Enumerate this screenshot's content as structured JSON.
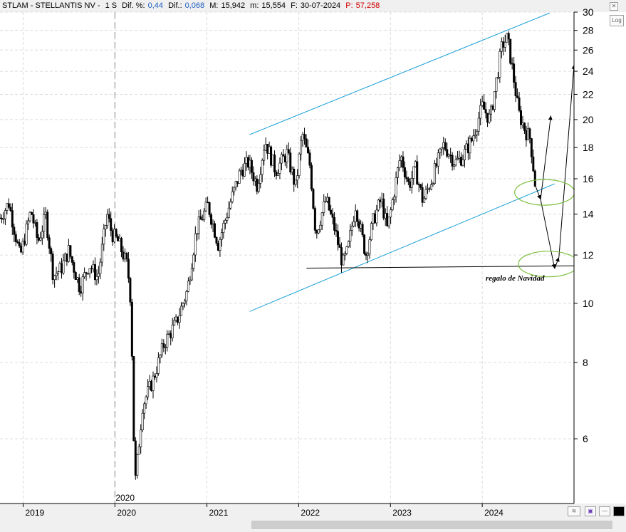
{
  "header": {
    "symbol_name": "STLAM - STELLANTIS NV -",
    "period": "1 S",
    "dif_pct_label": "Dif. %:",
    "dif_pct_value": "0,44",
    "dif_label": "Dif.:",
    "dif_value": "0,068",
    "max_label": "M:",
    "max_value": "15,942",
    "min_label": "m:",
    "min_value": "15,554",
    "date_label": "F:",
    "date_value": "30-07-2024",
    "p_label": "P:",
    "p_value": "57,258"
  },
  "log_button": "Log",
  "annotation": "regalo de Navidad",
  "colors": {
    "channel": "#1a9fd8",
    "ellipse": "#7cbf3c",
    "candles": "#000000",
    "header_value": "#1f5fc4",
    "header_p": "#d00000"
  },
  "chart_data": {
    "type": "candlestick",
    "scale": "log",
    "ylim": [
      4.7,
      30
    ],
    "yticks": [
      6,
      8,
      10,
      12,
      14,
      16,
      18,
      20,
      22,
      24,
      26,
      28,
      30
    ],
    "xlim": [
      "2018-10-01",
      "2024-12-31"
    ],
    "xticks": [
      {
        "label": "2019",
        "date": "2019-01-01"
      },
      {
        "label": "2020",
        "date": "2020-01-01"
      },
      {
        "label": "2021",
        "date": "2021-01-01"
      },
      {
        "label": "2022",
        "date": "2022-01-01"
      },
      {
        "label": "2023",
        "date": "2023-01-01"
      },
      {
        "label": "2024",
        "date": "2024-01-01"
      }
    ],
    "marker_label": "2020",
    "marker_date": "2020-01-01",
    "price_path": [
      [
        "2018-10-01",
        13.8
      ],
      [
        "2018-11-05",
        14.6
      ],
      [
        "2018-12-20",
        11.9
      ],
      [
        "2019-02-01",
        14.2
      ],
      [
        "2019-03-01",
        12.6
      ],
      [
        "2019-04-01",
        13.9
      ],
      [
        "2019-05-01",
        11.1
      ],
      [
        "2019-06-01",
        11.4
      ],
      [
        "2019-07-01",
        12.2
      ],
      [
        "2019-08-15",
        10.6
      ],
      [
        "2019-09-20",
        11.6
      ],
      [
        "2019-10-25",
        11.0
      ],
      [
        "2019-12-01",
        14.0
      ],
      [
        "2019-12-20",
        13.0
      ],
      [
        "2020-01-15",
        12.6
      ],
      [
        "2020-02-20",
        11.5
      ],
      [
        "2020-03-05",
        10.0
      ],
      [
        "2020-03-20",
        5.0
      ],
      [
        "2020-04-20",
        6.8
      ],
      [
        "2020-06-01",
        7.5
      ],
      [
        "2020-07-15",
        8.6
      ],
      [
        "2020-09-01",
        9.3
      ],
      [
        "2020-10-15",
        10.5
      ],
      [
        "2020-11-20",
        13.2
      ],
      [
        "2021-01-05",
        14.5
      ],
      [
        "2021-02-15",
        12.5
      ],
      [
        "2021-04-01",
        14.5
      ],
      [
        "2021-05-15",
        16.5
      ],
      [
        "2021-06-15",
        17.0
      ],
      [
        "2021-07-20",
        15.6
      ],
      [
        "2021-08-20",
        18.5
      ],
      [
        "2021-10-01",
        16.5
      ],
      [
        "2021-11-15",
        17.6
      ],
      [
        "2021-12-20",
        15.5
      ],
      [
        "2022-01-15",
        19.0
      ],
      [
        "2022-02-15",
        16.8
      ],
      [
        "2022-03-10",
        13.0
      ],
      [
        "2022-04-20",
        14.8
      ],
      [
        "2022-05-25",
        13.2
      ],
      [
        "2022-06-25",
        11.6
      ],
      [
        "2022-07-15",
        12.2
      ],
      [
        "2022-08-15",
        14.5
      ],
      [
        "2022-09-25",
        12.0
      ],
      [
        "2022-10-25",
        13.7
      ],
      [
        "2022-11-25",
        14.8
      ],
      [
        "2022-12-20",
        13.2
      ],
      [
        "2023-02-10",
        17.5
      ],
      [
        "2023-03-15",
        15.6
      ],
      [
        "2023-04-10",
        16.6
      ],
      [
        "2023-05-10",
        14.7
      ],
      [
        "2023-06-15",
        16.0
      ],
      [
        "2023-08-01",
        18.2
      ],
      [
        "2023-09-15",
        17.0
      ],
      [
        "2023-10-15",
        17.4
      ],
      [
        "2023-11-20",
        18.5
      ],
      [
        "2024-01-01",
        21.0
      ],
      [
        "2024-02-01",
        20.0
      ],
      [
        "2024-03-20",
        26.5
      ],
      [
        "2024-04-10",
        27.2
      ],
      [
        "2024-05-01",
        24.0
      ],
      [
        "2024-05-25",
        20.5
      ],
      [
        "2024-06-20",
        19.2
      ],
      [
        "2024-07-10",
        18.6
      ],
      [
        "2024-07-30",
        15.6
      ]
    ],
    "channel": {
      "upper": [
        [
          "2021-06-20",
          18.9
        ],
        [
          "2024-09-25",
          29.9
        ]
      ],
      "lower": [
        [
          "2021-06-20",
          9.7
        ],
        [
          "2024-10-15",
          15.7
        ]
      ]
    },
    "support": [
      [
        "2022-02-01",
        11.42
      ],
      [
        "2024-12-31",
        11.52
      ]
    ],
    "projection": [
      [
        "2024-07-30",
        15.6
      ],
      [
        "2024-08-20",
        14.8
      ],
      [
        "2024-10-15",
        11.4
      ],
      [
        "2024-11-01",
        11.9
      ],
      [
        "2024-12-31",
        24.6
      ]
    ],
    "projection_arrow_2": [
      [
        "2024-08-20",
        14.8
      ],
      [
        "2024-09-30",
        20.3
      ]
    ],
    "ellipses": [
      {
        "date": "2024-09-05",
        "value": 15.2
      },
      {
        "date": "2024-09-20",
        "value": 11.6
      }
    ]
  }
}
